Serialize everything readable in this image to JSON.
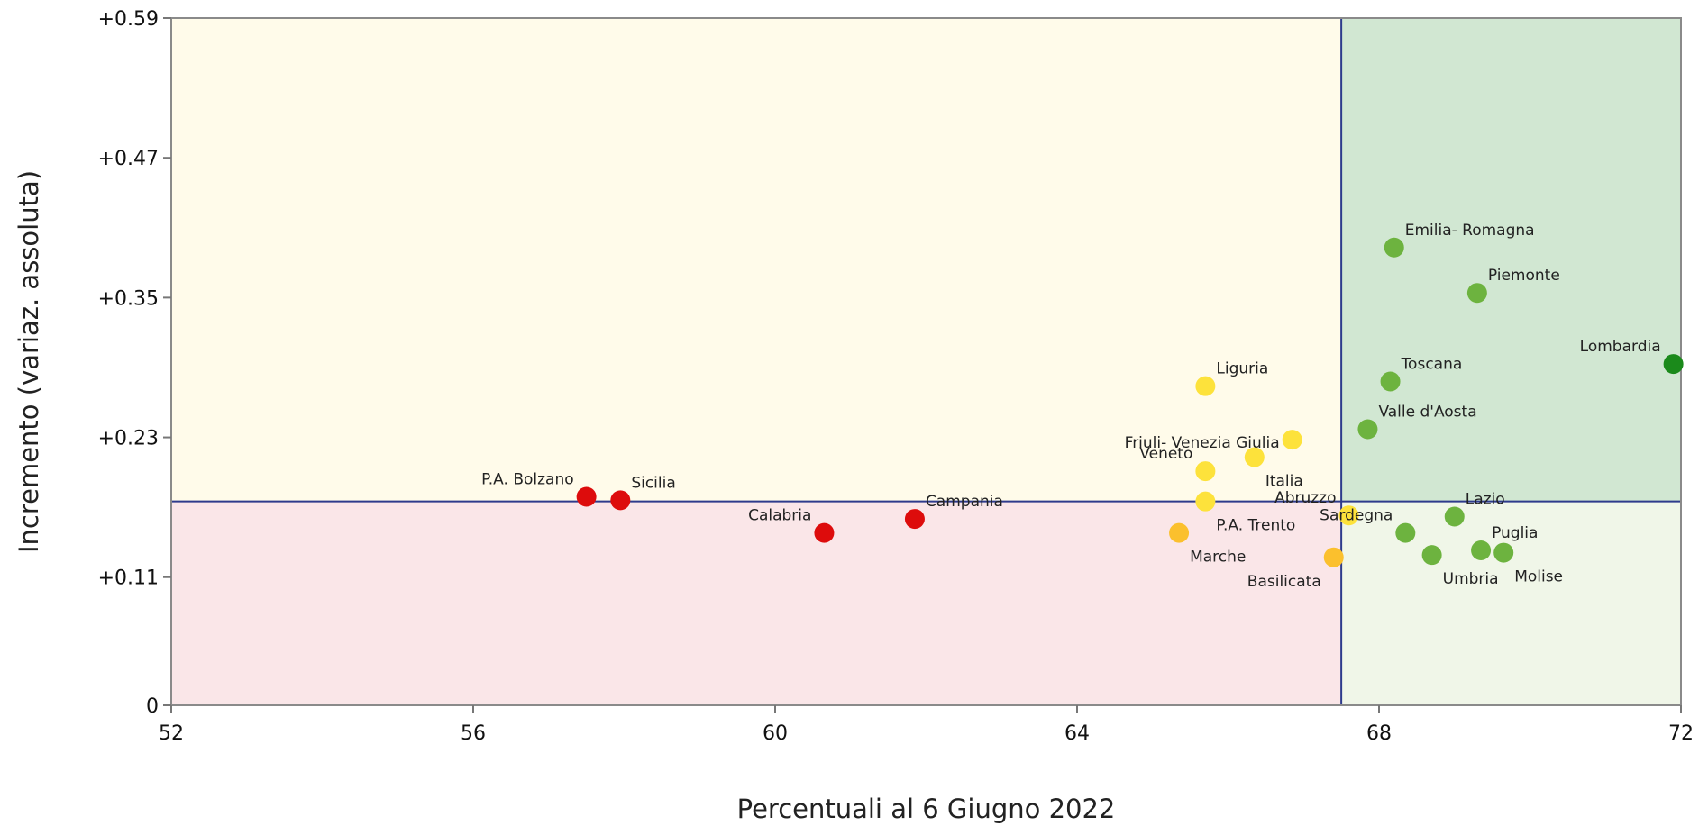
{
  "chart_data": {
    "type": "scatter",
    "xlabel": "Percentuali al 6 Giugno 2022",
    "ylabel": "Incremento (variaz. assoluta)",
    "xlim": [
      52,
      72
    ],
    "ylim": [
      0,
      0.59
    ],
    "xticks": [
      {
        "value": 52,
        "label": "52"
      },
      {
        "value": 56,
        "label": "56"
      },
      {
        "value": 60,
        "label": "60"
      },
      {
        "value": 64,
        "label": "64"
      },
      {
        "value": 68,
        "label": "68"
      },
      {
        "value": 72,
        "label": "72"
      }
    ],
    "yticks": [
      {
        "value": 0,
        "label": "0"
      },
      {
        "value": 0.11,
        "label": "+0.11"
      },
      {
        "value": 0.23,
        "label": "+0.23"
      },
      {
        "value": 0.35,
        "label": "+0.35"
      },
      {
        "value": 0.47,
        "label": "+0.47"
      },
      {
        "value": 0.59,
        "label": "+0.59"
      }
    ],
    "reference_lines": {
      "x": 67.5,
      "y": 0.175
    },
    "quadrant_colors": {
      "top_left": "#fffbea",
      "top_right": "#d1e7d2",
      "bottom_left": "#fae6e8",
      "bottom_right": "#f0f6e8"
    },
    "reference_line_color": "#2e3b8c",
    "category_colors": {
      "red": "#dd0c0c",
      "orange": "#fbc02d",
      "yellow": "#fde23b",
      "lightgreen": "#6db33f",
      "darkgreen": "#1b8a1b"
    },
    "points": [
      {
        "label": "P.A. Bolzano",
        "x": 57.5,
        "y": 0.179,
        "color": "red",
        "label_pos": "above-left"
      },
      {
        "label": "Sicilia",
        "x": 57.95,
        "y": 0.176,
        "color": "red",
        "label_pos": "above-right"
      },
      {
        "label": "Calabria",
        "x": 60.65,
        "y": 0.148,
        "color": "red",
        "label_pos": "above-left"
      },
      {
        "label": "Campania",
        "x": 61.85,
        "y": 0.16,
        "color": "red",
        "label_pos": "above-right"
      },
      {
        "label": "Liguria",
        "x": 65.7,
        "y": 0.274,
        "color": "yellow",
        "label_pos": "above-right"
      },
      {
        "label": "Friuli- Venezia Giulia",
        "x": 66.85,
        "y": 0.228,
        "color": "yellow",
        "label_pos": "left"
      },
      {
        "label": "Italia",
        "x": 66.35,
        "y": 0.213,
        "color": "yellow",
        "label_pos": "below-right"
      },
      {
        "label": "Veneto",
        "x": 65.7,
        "y": 0.201,
        "color": "yellow",
        "label_pos": "above-left"
      },
      {
        "label": "P.A. Trento",
        "x": 65.7,
        "y": 0.175,
        "color": "yellow",
        "label_pos": "below-right"
      },
      {
        "label": "Marche",
        "x": 65.35,
        "y": 0.148,
        "color": "orange",
        "label_pos": "below-right"
      },
      {
        "label": "Basilicata",
        "x": 67.4,
        "y": 0.127,
        "color": "orange",
        "label_pos": "below-left"
      },
      {
        "label": "Abruzzo",
        "x": 67.6,
        "y": 0.163,
        "color": "yellow",
        "label_pos": "above-left"
      },
      {
        "label": "Sardegna",
        "x": 68.35,
        "y": 0.148,
        "color": "lightgreen",
        "label_pos": "above-left"
      },
      {
        "label": "Lazio",
        "x": 69.0,
        "y": 0.162,
        "color": "lightgreen",
        "label_pos": "above-right"
      },
      {
        "label": "Puglia",
        "x": 69.35,
        "y": 0.133,
        "color": "lightgreen",
        "label_pos": "above-right"
      },
      {
        "label": "Umbria",
        "x": 68.7,
        "y": 0.129,
        "color": "lightgreen",
        "label_pos": "below-right"
      },
      {
        "label": "Molise",
        "x": 69.65,
        "y": 0.131,
        "color": "lightgreen",
        "label_pos": "below-right"
      },
      {
        "label": "Valle d'Aosta",
        "x": 67.85,
        "y": 0.237,
        "color": "lightgreen",
        "label_pos": "above-right"
      },
      {
        "label": "Toscana",
        "x": 68.15,
        "y": 0.278,
        "color": "lightgreen",
        "label_pos": "above-right"
      },
      {
        "label": "Emilia- Romagna",
        "x": 68.2,
        "y": 0.393,
        "color": "lightgreen",
        "label_pos": "above-right"
      },
      {
        "label": "Piemonte",
        "x": 69.3,
        "y": 0.354,
        "color": "lightgreen",
        "label_pos": "above-right"
      },
      {
        "label": "Lombardia",
        "x": 71.9,
        "y": 0.293,
        "color": "darkgreen",
        "label_pos": "above-left"
      }
    ]
  }
}
